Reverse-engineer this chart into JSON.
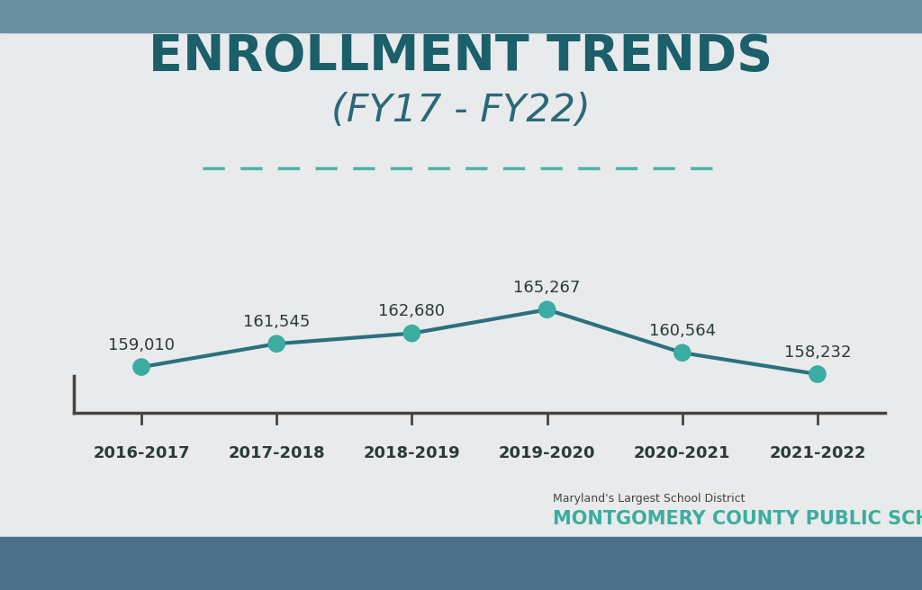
{
  "title_line1": "ENROLLMENT TRENDS",
  "title_line2": "(FY17 - FY22)",
  "categories": [
    "2016-2017",
    "2017-2018",
    "2018-2019",
    "2019-2020",
    "2020-2021",
    "2021-2022"
  ],
  "values": [
    159010,
    161545,
    162680,
    165267,
    160564,
    158232
  ],
  "labels": [
    "159,010",
    "161,545",
    "162,680",
    "165,267",
    "160,564",
    "158,232"
  ],
  "line_color": "#2a7080",
  "marker_color": "#3aada0",
  "title_color": "#1a5f6a",
  "subtitle_color": "#2a6878",
  "dashed_line_color": "#3aada0",
  "main_bg": "#e8eaeb",
  "top_bar_color": "#6a8fa0",
  "bottom_bar_color": "#4a7088",
  "axis_color": "#444444",
  "label_color": "#2a3a3a",
  "footer_small": "Maryland's Largest School District",
  "footer_large": "MONTGOMERY COUNTY PUBLIC SCHOOLS",
  "footer_color": "#3aada0",
  "footer_small_color": "#444444",
  "ylim_min": 154000,
  "ylim_max": 172000,
  "top_bar_height": 0.055,
  "bottom_bar_height": 0.09
}
